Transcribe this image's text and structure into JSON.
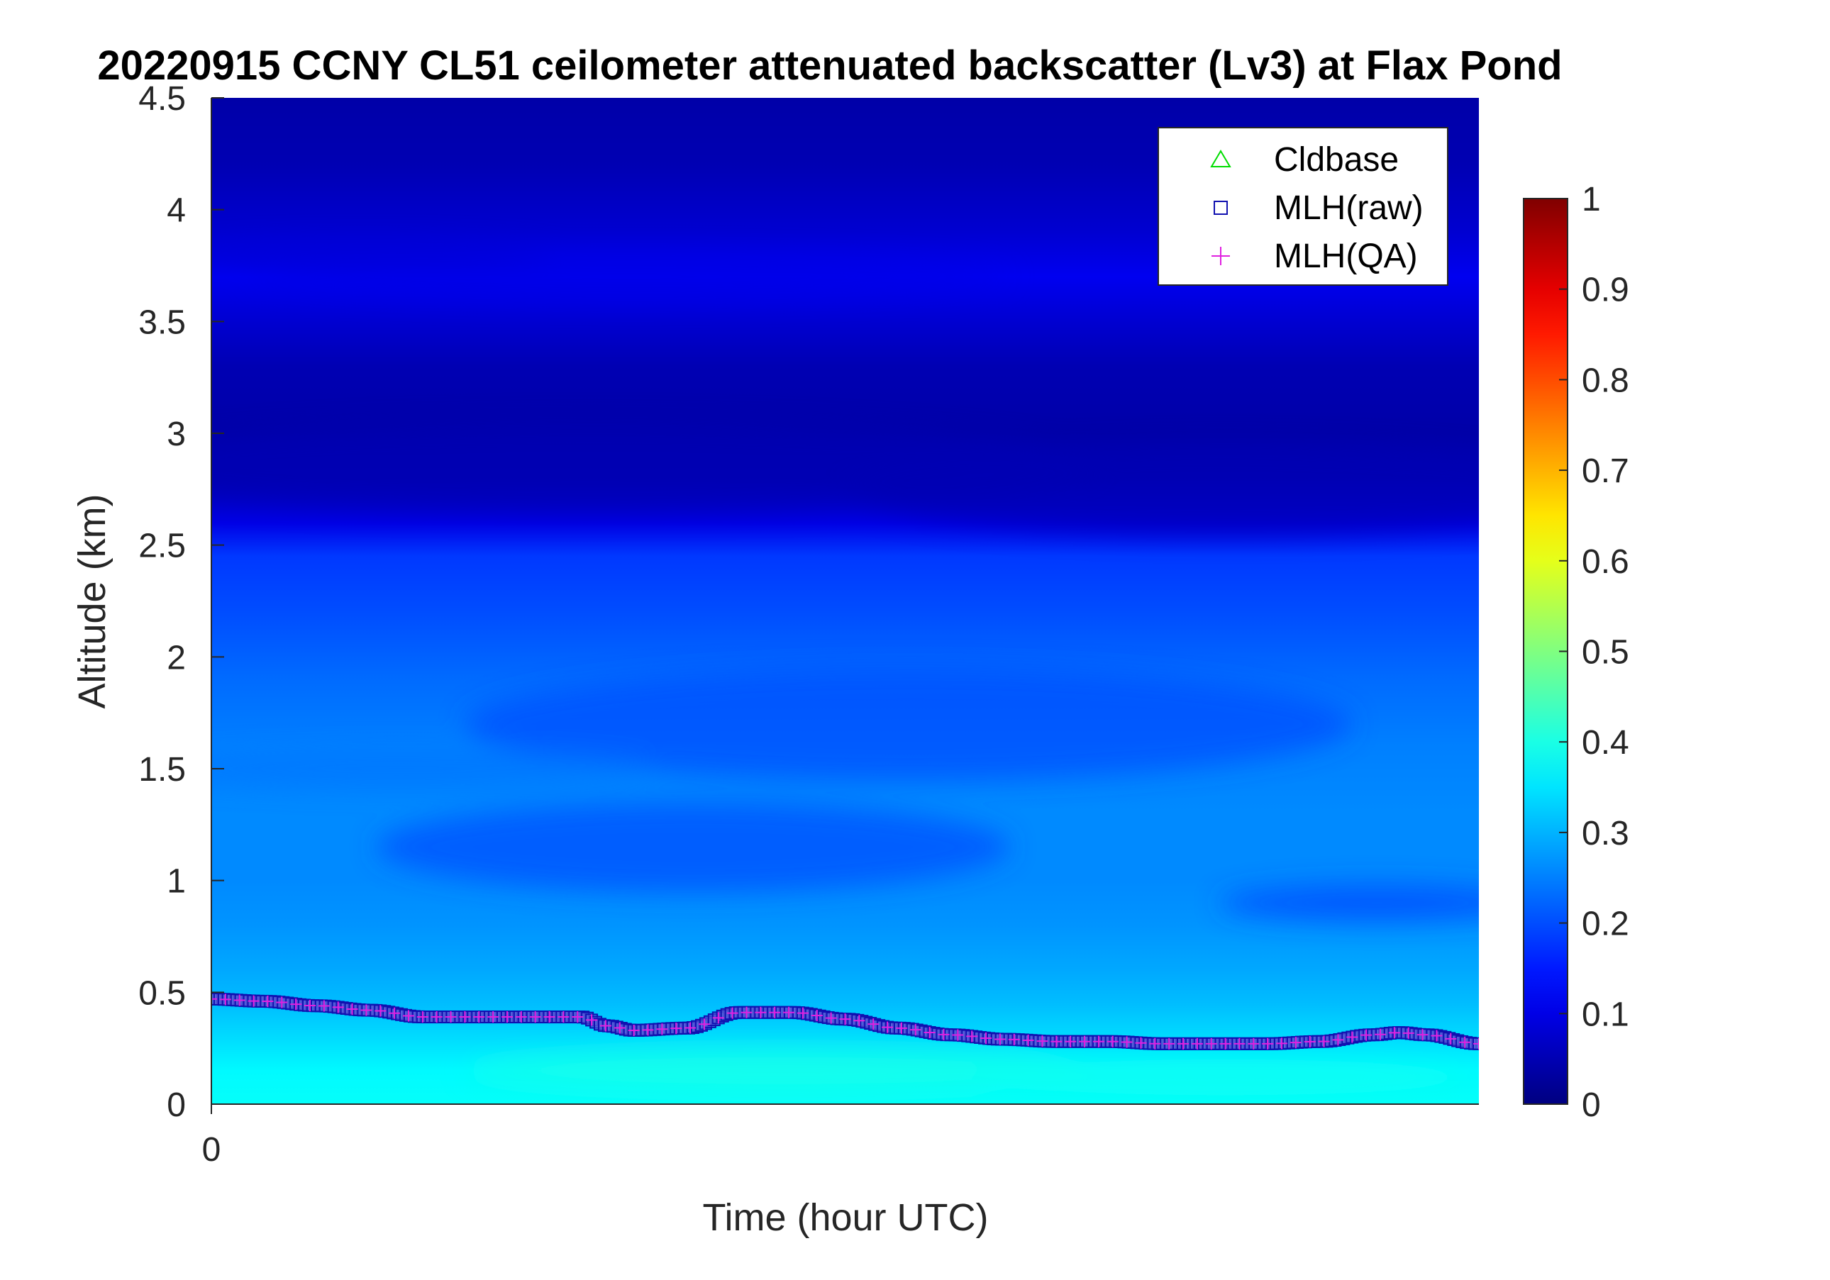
{
  "chart_data": {
    "type": "heatmap",
    "title": "20220915 CCNY CL51 ceilometer attenuated backscatter (Lv3) at Flax Pond",
    "xlabel": "Time (hour UTC)",
    "ylabel": "Altitude (km)",
    "xlim": [
      0,
      24
    ],
    "ylim": [
      0,
      4.5
    ],
    "x_ticks": [
      0
    ],
    "y_ticks": [
      0,
      0.5,
      1,
      1.5,
      2,
      2.5,
      3,
      3.5,
      4,
      4.5
    ],
    "colorbar": {
      "colormap": "jet",
      "range": [
        0,
        1
      ],
      "ticks": [
        0,
        0.1,
        0.2,
        0.3,
        0.4,
        0.5,
        0.6,
        0.7,
        0.8,
        0.9,
        1
      ]
    },
    "legend": {
      "position": "top-right",
      "entries": [
        {
          "name": "Cldbase",
          "marker": "triangle",
          "color": "#00dd00"
        },
        {
          "name": "MLH(raw)",
          "marker": "square",
          "color": "#1010b0"
        },
        {
          "name": "MLH(QA)",
          "marker": "plus",
          "color": "#e020e0"
        }
      ]
    },
    "series": [
      {
        "name": "MLH(raw)",
        "x": [
          0,
          1,
          2,
          3,
          4,
          5,
          6,
          7,
          7.5,
          8,
          9,
          10,
          11,
          12,
          13,
          14,
          15,
          16,
          17,
          18,
          19,
          20,
          21,
          22,
          22.5,
          23,
          24
        ],
        "y": [
          0.47,
          0.46,
          0.44,
          0.42,
          0.39,
          0.39,
          0.39,
          0.39,
          0.35,
          0.33,
          0.34,
          0.41,
          0.41,
          0.38,
          0.34,
          0.31,
          0.29,
          0.28,
          0.28,
          0.27,
          0.27,
          0.27,
          0.28,
          0.31,
          0.32,
          0.31,
          0.27
        ]
      },
      {
        "name": "MLH(QA)",
        "x": [
          0,
          1,
          2,
          3,
          4,
          5,
          6,
          7,
          7.5,
          8,
          9,
          10,
          11,
          12,
          13,
          14,
          15,
          16,
          17,
          18,
          19,
          20,
          21,
          22,
          22.5,
          23,
          24
        ],
        "y": [
          0.47,
          0.46,
          0.44,
          0.42,
          0.39,
          0.39,
          0.39,
          0.39,
          0.35,
          0.33,
          0.34,
          0.41,
          0.41,
          0.38,
          0.34,
          0.31,
          0.29,
          0.28,
          0.28,
          0.27,
          0.27,
          0.27,
          0.28,
          0.31,
          0.32,
          0.31,
          0.27
        ]
      },
      {
        "name": "Cldbase",
        "x": [],
        "y": []
      }
    ],
    "backscatter_profile": {
      "altitude_km": [
        0,
        0.15,
        0.3,
        0.45,
        0.6,
        0.8,
        1.0,
        1.3,
        1.6,
        1.9,
        2.2,
        2.45,
        2.6,
        2.8,
        3.0,
        3.3,
        3.5,
        3.7,
        3.9,
        4.2,
        4.5
      ],
      "value": [
        0.38,
        0.37,
        0.34,
        0.31,
        0.29,
        0.27,
        0.26,
        0.26,
        0.25,
        0.23,
        0.2,
        0.18,
        0.1,
        0.05,
        0.04,
        0.05,
        0.08,
        0.11,
        0.08,
        0.05,
        0.04
      ]
    }
  }
}
